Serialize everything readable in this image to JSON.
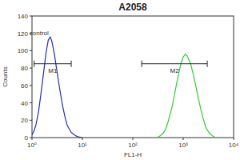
{
  "chart_data": {
    "type": "line",
    "title": "A2058",
    "x_label": "FL1-H",
    "y_label": "Counts",
    "log": "x",
    "grid": false,
    "xlim": [
      1,
      10000
    ],
    "xticks": [
      {
        "value": 1,
        "label": "10⁰"
      },
      {
        "value": 10,
        "label": "10¹"
      },
      {
        "value": 100,
        "label": "10²"
      },
      {
        "value": 1000,
        "label": "10³"
      },
      {
        "value": 10000,
        "label": "10⁴"
      }
    ],
    "ylim": [
      0,
      140
    ],
    "yticks": [
      0,
      20,
      40,
      60,
      80,
      100,
      120,
      140
    ],
    "series": [
      {
        "name": "control",
        "color": "#2a2ab8",
        "x": [
          1,
          1.1,
          1.2,
          1.35,
          1.5,
          1.7,
          1.9,
          2.1,
          2.3,
          2.5,
          2.8,
          3.1,
          3.5,
          4,
          4.5,
          5,
          6,
          7,
          8,
          10
        ],
        "values": [
          3,
          8,
          15,
          30,
          50,
          75,
          98,
          112,
          116,
          110,
          95,
          78,
          58,
          38,
          24,
          14,
          6,
          3,
          1,
          0
        ]
      },
      {
        "color": "#33cc33",
        "x": [
          300,
          350,
          400,
          450,
          500,
          600,
          700,
          800,
          900,
          1000,
          1100,
          1200,
          1400,
          1600,
          1800,
          2000,
          2400,
          2800,
          3300,
          4000,
          4500
        ],
        "values": [
          0,
          2,
          5,
          10,
          18,
          35,
          55,
          72,
          85,
          93,
          96,
          94,
          85,
          72,
          58,
          45,
          25,
          12,
          5,
          1,
          0
        ]
      }
    ],
    "gates": [
      {
        "label": "M1",
        "range": [
          1.1,
          6
        ],
        "y": 85
      },
      {
        "label": "M2",
        "range": [
          150,
          3000
        ],
        "y": 85
      }
    ]
  }
}
